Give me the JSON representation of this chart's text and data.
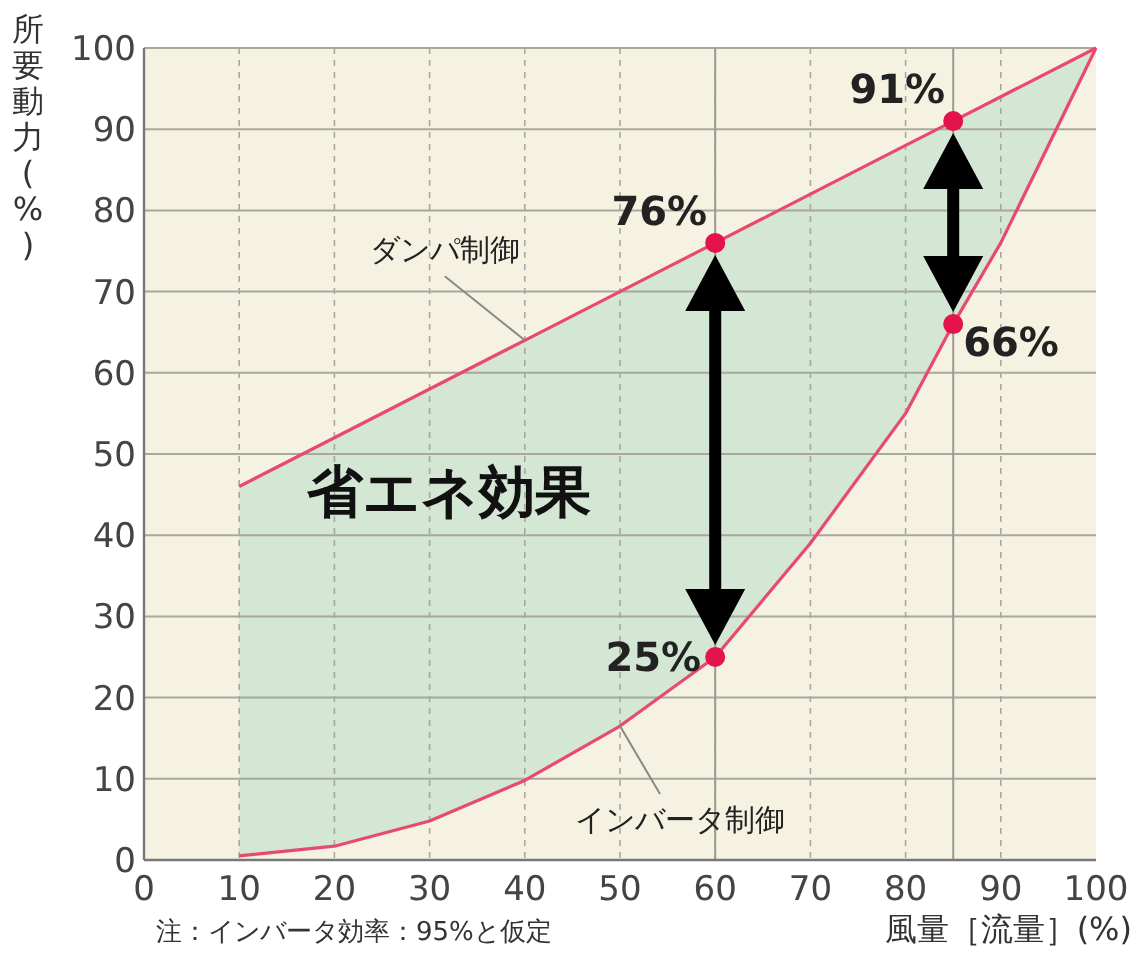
{
  "chart_data": {
    "type": "line",
    "xlabel": "風量［流量］(%)",
    "ylabel": "所要動力(%)",
    "xlim": [
      0,
      100
    ],
    "ylim": [
      0,
      100
    ],
    "xticks": [
      0,
      10,
      20,
      30,
      40,
      50,
      60,
      70,
      80,
      90,
      100
    ],
    "yticks": [
      0,
      10,
      20,
      30,
      40,
      50,
      60,
      70,
      80,
      90,
      100
    ],
    "grid": true,
    "line_style": "solid",
    "series": [
      {
        "color": "#e8496f",
        "x": [
          10,
          20,
          30,
          40,
          50,
          60,
          70,
          80,
          85,
          90,
          100
        ],
        "values": [
          46,
          52,
          58,
          64,
          70,
          76,
          82,
          88,
          91,
          94,
          100
        ]
      },
      {
        "color": "#e8496f",
        "x": [
          10,
          20,
          30,
          40,
          50,
          60,
          70,
          80,
          85,
          90,
          100
        ],
        "values": [
          0.5,
          1.7,
          4.8,
          9.8,
          16.5,
          25,
          39,
          55,
          66,
          76,
          100
        ],
        "lower": [
          0.5,
          1.7,
          4.8,
          9.8,
          16.5,
          25,
          39,
          55,
          66,
          76,
          100
        ],
        "upper": [
          46,
          52,
          58,
          64,
          70,
          76,
          82,
          88,
          91,
          94,
          100
        ]
      },
      {
        "type": "scatter",
        "marker": "circle",
        "color": "#e4134c",
        "x": [
          60,
          85,
          60,
          85
        ],
        "values": [
          76,
          91,
          25,
          66
        ],
        "value_labels": [
          "76%",
          "91%",
          "25%",
          "66%"
        ]
      }
    ],
    "ref_lines": [
      {
        "axis": "x",
        "value": 60,
        "color": "#9a9a90"
      },
      {
        "axis": "x",
        "value": 85,
        "color": "#9a9a90"
      }
    ],
    "annotations": [
      {
        "text": "ダンパ制御",
        "x": 40,
        "y": 64
      },
      {
        "text": "インバータ制御",
        "x": 50,
        "y": 16.5
      },
      "省エネ効果",
      "注：インバータ効率：95%と仮定"
    ]
  }
}
